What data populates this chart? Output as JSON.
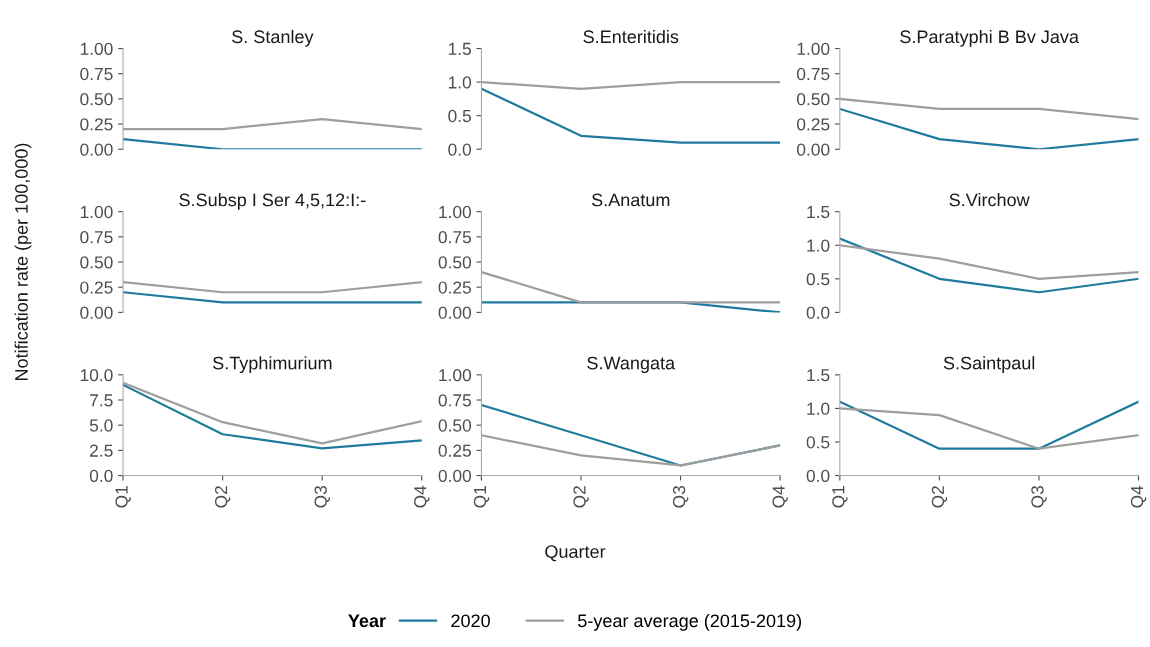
{
  "chart_data": [
    {
      "type": "line",
      "title": "S. Stanley",
      "legend": "bottom",
      "legend_title": "Year",
      "categories": [
        "Q1",
        "Q2",
        "Q3",
        "Q4"
      ],
      "ylim": [
        0,
        1
      ],
      "yticks": [
        {
          "value": 0,
          "label": "0.00"
        },
        {
          "value": 0.25,
          "label": "0.25"
        },
        {
          "value": 0.5,
          "label": "0.50"
        },
        {
          "value": 0.75,
          "label": "0.75"
        },
        {
          "value": 1,
          "label": "1.00"
        }
      ],
      "tick_labels": "y",
      "series": [
        {
          "name": "2020",
          "color": "#1f7a9e",
          "values": [
            0.1,
            0.0,
            0.0,
            0.0
          ]
        },
        {
          "name": "5-year average (2015-2019)",
          "color": "#9e9e9e",
          "values": [
            0.2,
            0.2,
            0.3,
            0.2
          ]
        }
      ]
    },
    {
      "type": "line",
      "title": "S.Enteritidis",
      "categories": [
        "Q1",
        "Q2",
        "Q3",
        "Q4"
      ],
      "ylim": [
        0,
        1.5
      ],
      "yticks": [
        {
          "value": 0,
          "label": "0.0"
        },
        0.5,
        {
          "value": 1,
          "label": "1.0"
        },
        1.5
      ],
      "tick_labels": "y",
      "series": [
        {
          "name": "2020",
          "color": "#1f7a9e",
          "values": [
            0.9,
            0.2,
            0.1,
            0.1
          ]
        },
        {
          "name": "5-year average (2015-2019)",
          "color": "#9e9e9e",
          "values": [
            1.0,
            0.9,
            1.0,
            1.0
          ]
        }
      ]
    },
    {
      "type": "line",
      "title": "S.Paratyphi B Bv Java",
      "categories": [
        "Q1",
        "Q2",
        "Q3",
        "Q4"
      ],
      "ylim": [
        0,
        1
      ],
      "yticks": [
        {
          "value": 0,
          "label": "0.00"
        },
        {
          "value": 0.25,
          "label": "0.25"
        },
        {
          "value": 0.5,
          "label": "0.50"
        },
        {
          "value": 0.75,
          "label": "0.75"
        },
        {
          "value": 1,
          "label": "1.00"
        }
      ],
      "tick_labels": "y",
      "series": [
        {
          "name": "2020",
          "color": "#1f7a9e",
          "values": [
            0.4,
            0.1,
            0.0,
            0.1
          ]
        },
        {
          "name": "5-year average (2015-2019)",
          "color": "#9e9e9e",
          "values": [
            0.5,
            0.4,
            0.4,
            0.3
          ]
        }
      ]
    },
    {
      "type": "line",
      "title": "S.Subsp I Ser 4,5,12:I:-",
      "ylabel": "Notification rate (per 100,000)",
      "categories": [
        "Q1",
        "Q2",
        "Q3",
        "Q4"
      ],
      "ylim": [
        0,
        1
      ],
      "yticks": [
        {
          "value": 0,
          "label": "0.00"
        },
        {
          "value": 0.25,
          "label": "0.25"
        },
        {
          "value": 0.5,
          "label": "0.50"
        },
        {
          "value": 0.75,
          "label": "0.75"
        },
        {
          "value": 1,
          "label": "1.00"
        }
      ],
      "tick_labels": "y",
      "series": [
        {
          "name": "2020",
          "color": "#1f7a9e",
          "values": [
            0.2,
            0.1,
            0.1,
            0.1
          ]
        },
        {
          "name": "5-year average (2015-2019)",
          "color": "#9e9e9e",
          "values": [
            0.3,
            0.2,
            0.2,
            0.3
          ]
        }
      ]
    },
    {
      "type": "line",
      "title": "S.Anatum",
      "categories": [
        "Q1",
        "Q2",
        "Q3",
        "Q4"
      ],
      "ylim": [
        0,
        1
      ],
      "yticks": [
        {
          "value": 0,
          "label": "0.00"
        },
        {
          "value": 0.25,
          "label": "0.25"
        },
        {
          "value": 0.5,
          "label": "0.50"
        },
        {
          "value": 0.75,
          "label": "0.75"
        },
        {
          "value": 1,
          "label": "1.00"
        }
      ],
      "tick_labels": "y",
      "series": [
        {
          "name": "2020",
          "color": "#1f7a9e",
          "values": [
            0.1,
            0.1,
            0.1,
            0.0
          ]
        },
        {
          "name": "5-year average (2015-2019)",
          "color": "#9e9e9e",
          "values": [
            0.4,
            0.1,
            0.1,
            0.1
          ]
        }
      ]
    },
    {
      "type": "line",
      "title": "S.Virchow",
      "categories": [
        "Q1",
        "Q2",
        "Q3",
        "Q4"
      ],
      "ylim": [
        0,
        1.5
      ],
      "yticks": [
        {
          "value": 0,
          "label": "0.0"
        },
        0.5,
        {
          "value": 1,
          "label": "1.0"
        },
        1.5
      ],
      "tick_labels": "y",
      "series": [
        {
          "name": "2020",
          "color": "#1f7a9e",
          "values": [
            1.1,
            0.5,
            0.3,
            0.5
          ]
        },
        {
          "name": "5-year average (2015-2019)",
          "color": "#9e9e9e",
          "values": [
            1.0,
            0.8,
            0.5,
            0.6
          ]
        }
      ]
    },
    {
      "type": "line",
      "title": "S.Typhimurium",
      "categories": [
        "Q1",
        "Q2",
        "Q3",
        "Q4"
      ],
      "ylim": [
        0,
        10
      ],
      "yticks": [
        {
          "value": 0,
          "label": "0.0"
        },
        2.5,
        {
          "value": 5,
          "label": "5.0"
        },
        7.5,
        {
          "value": 10,
          "label": "10.0"
        }
      ],
      "series": [
        {
          "name": "2020",
          "color": "#1f7a9e",
          "values": [
            9.0,
            4.1,
            2.7,
            3.5
          ]
        },
        {
          "name": "5-year average (2015-2019)",
          "color": "#9e9e9e",
          "values": [
            9.2,
            5.3,
            3.2,
            5.4
          ]
        }
      ]
    },
    {
      "type": "line",
      "title": "S.Wangata",
      "xlabel": "Quarter",
      "categories": [
        "Q1",
        "Q2",
        "Q3",
        "Q4"
      ],
      "ylim": [
        0,
        1
      ],
      "yticks": [
        {
          "value": 0,
          "label": "0.00"
        },
        {
          "value": 0.25,
          "label": "0.25"
        },
        {
          "value": 0.5,
          "label": "0.50"
        },
        {
          "value": 0.75,
          "label": "0.75"
        },
        {
          "value": 1,
          "label": "1.00"
        }
      ],
      "series": [
        {
          "name": "2020",
          "color": "#1f7a9e",
          "values": [
            0.7,
            0.4,
            0.1,
            0.3
          ]
        },
        {
          "name": "5-year average (2015-2019)",
          "color": "#9e9e9e",
          "values": [
            0.4,
            0.2,
            0.1,
            0.3
          ]
        }
      ]
    },
    {
      "type": "line",
      "title": "S.Saintpaul",
      "categories": [
        "Q1",
        "Q2",
        "Q3",
        "Q4"
      ],
      "ylim": [
        0,
        1.5
      ],
      "yticks": [
        {
          "value": 0,
          "label": "0.0"
        },
        0.5,
        {
          "value": 1,
          "label": "1.0"
        },
        1.5
      ],
      "series": [
        {
          "name": "2020",
          "color": "#1f7a9e",
          "values": [
            1.1,
            0.4,
            0.4,
            1.1
          ]
        },
        {
          "name": "5-year average (2015-2019)",
          "color": "#9e9e9e",
          "values": [
            1.0,
            0.9,
            0.4,
            0.6
          ]
        }
      ]
    }
  ]
}
